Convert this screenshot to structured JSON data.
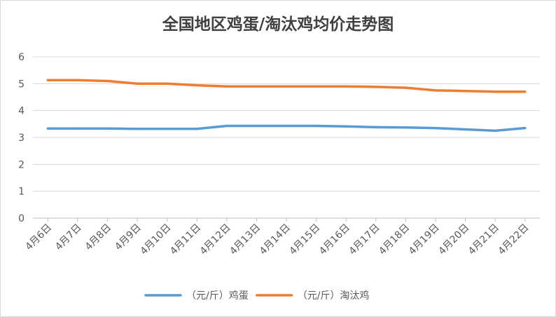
{
  "chart_data": {
    "type": "line",
    "title": "全国地区鸡蛋/淘汰鸡均价走势图",
    "xlabel": "",
    "ylabel": "",
    "categories": [
      "4月6日",
      "4月7日",
      "4月8日",
      "4月9日",
      "4月10日",
      "4月11日",
      "4月12日",
      "4月13日",
      "4月14日",
      "4月15日",
      "4月16日",
      "4月17日",
      "4月18日",
      "4月19日",
      "4月20日",
      "4月21日",
      "4月22日"
    ],
    "ylim": [
      0,
      6
    ],
    "yticks": [
      "0",
      "1",
      "2",
      "3",
      "4",
      "5",
      "6"
    ],
    "grid": true,
    "legend_position": "bottom",
    "series": [
      {
        "name": "（元/斤）鸡蛋",
        "color": "#5b9bd5",
        "values": [
          3.33,
          3.33,
          3.33,
          3.32,
          3.32,
          3.32,
          3.43,
          3.43,
          3.43,
          3.43,
          3.41,
          3.38,
          3.37,
          3.35,
          3.3,
          3.25,
          3.35
        ]
      },
      {
        "name": "（元/斤）淘汰鸡",
        "color": "#ed7d31",
        "values": [
          5.13,
          5.13,
          5.1,
          5.0,
          5.0,
          4.94,
          4.9,
          4.9,
          4.9,
          4.9,
          4.9,
          4.88,
          4.85,
          4.75,
          4.73,
          4.7,
          4.7
        ]
      }
    ]
  }
}
